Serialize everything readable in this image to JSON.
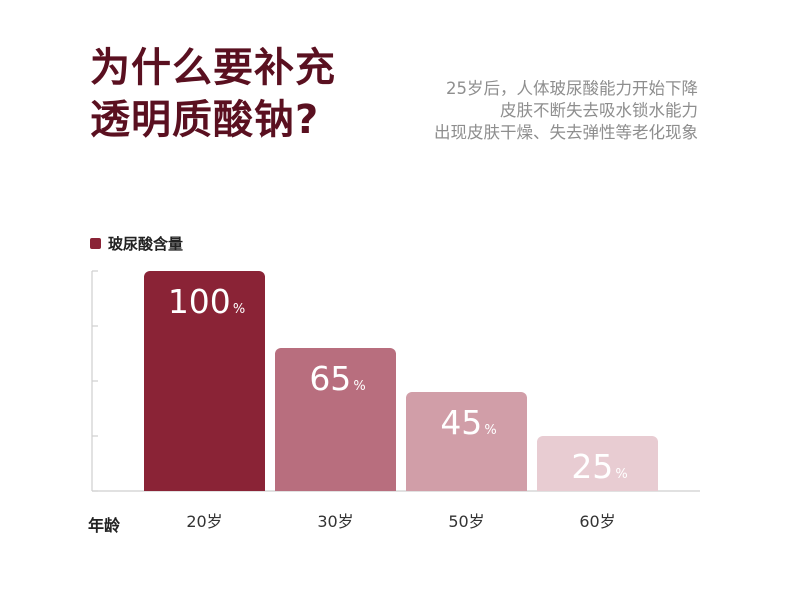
{
  "title_lines": [
    "为什么要补充",
    "透明质酸钠?"
  ],
  "description_lines": [
    "25岁后，人体玻尿酸能力开始下降",
    "皮肤不断失去吸水锁水能力",
    "出现皮肤干燥、失去弹性等老化现象"
  ],
  "chart_data": {
    "type": "bar",
    "title": "",
    "xlabel": "年龄",
    "ylabel": "",
    "categories": [
      "20岁",
      "30岁",
      "50岁",
      "60岁"
    ],
    "series": [
      {
        "name": "玻尿酸含量",
        "values": [
          100,
          65,
          45,
          25
        ]
      }
    ],
    "value_labels": [
      "100",
      "65",
      "45",
      "25"
    ],
    "value_unit": "%",
    "ylim": [
      0,
      100
    ],
    "legend": "top-left",
    "bar_colors": [
      "#8a2336",
      "#b86e7e",
      "#d19ea8",
      "#e8ccd2"
    ],
    "grid": false
  }
}
